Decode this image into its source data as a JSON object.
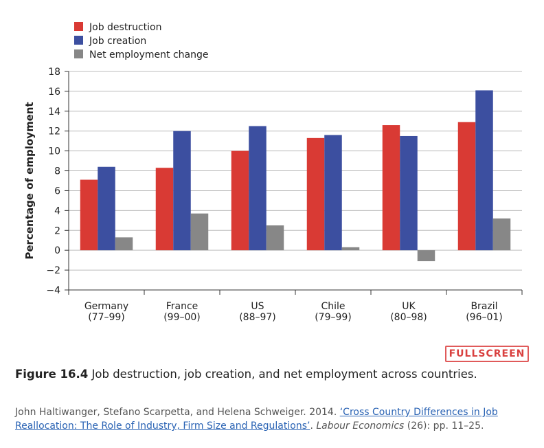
{
  "chart_data": {
    "type": "bar",
    "categories": [
      [
        "Germany",
        "(77–99)"
      ],
      [
        "France",
        "(99–00)"
      ],
      [
        "US",
        "(88–97)"
      ],
      [
        "Chile",
        "(79–99)"
      ],
      [
        "UK",
        "(80–98)"
      ],
      [
        "Brazil",
        "(96–01)"
      ]
    ],
    "series": [
      {
        "name": "Job destruction",
        "color": "#d93a34",
        "values": [
          7.1,
          8.3,
          10.0,
          11.3,
          12.6,
          12.9
        ]
      },
      {
        "name": "Job creation",
        "color": "#3c4fa0",
        "values": [
          8.4,
          12.0,
          12.5,
          11.6,
          11.5,
          16.1
        ]
      },
      {
        "name": "Net employment change",
        "color": "#878787",
        "values": [
          1.3,
          3.7,
          2.5,
          0.3,
          -1.1,
          3.2
        ]
      }
    ],
    "ylabel": "Percentage of employment",
    "xlabel": "",
    "ylim": [
      -4,
      18
    ],
    "yticks": [
      -4,
      -2,
      0,
      2,
      4,
      6,
      8,
      10,
      12,
      14,
      16,
      18
    ],
    "ytick_labels": [
      "−4",
      "−2",
      "0",
      "2",
      "4",
      "6",
      "8",
      "10",
      "12",
      "14",
      "16",
      "18"
    ],
    "grid": true,
    "legend_position": "top-left"
  },
  "fullscreen_label": "FULLSCREEN",
  "caption": {
    "figure_label": "Figure 16.4",
    "text": " Job destruction, job creation, and net employment across countries."
  },
  "source": {
    "authors": "John Haltiwanger, Stefano Scarpetta, and Helena Schweiger. 2014. ",
    "link_text": "‘Cross Country Differences in Job Reallocation: The Role of Industry, Firm Size and Regulations’",
    "after_link": ". ",
    "journal": "Labour Economics",
    "details": " (26): pp. 11–25."
  }
}
